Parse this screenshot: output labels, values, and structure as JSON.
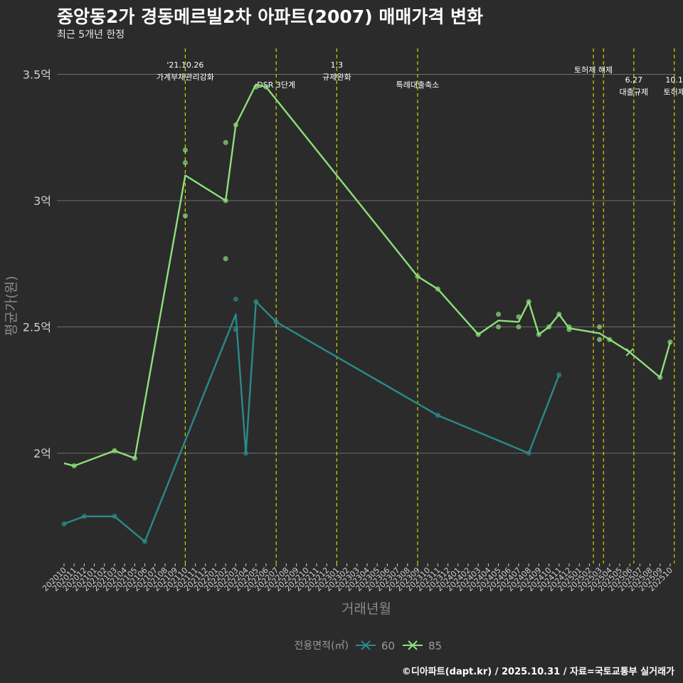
{
  "chart_data": {
    "type": "line",
    "title": "중앙동2가 경동메르빌2차 아파트(2007) 매매가격 변화",
    "subtitle": "최근 5개년 한정",
    "xlabel": "거래년월",
    "ylabel": "평균가(원)",
    "caption": "©디아파트(dapt.kr) / 2025.10.31 / 자료=국토교통부 실거래가",
    "legend_title": "전용면적(㎡)",
    "legend_position": "bottom",
    "ylim": [
      1.57,
      3.6
    ],
    "y_ticks": [
      {
        "value": 2.0,
        "label": "2억"
      },
      {
        "value": 2.5,
        "label": "2.5억"
      },
      {
        "value": 3.0,
        "label": "3억"
      },
      {
        "value": 3.5,
        "label": "3.5억"
      }
    ],
    "x_months": [
      "202010",
      "202011",
      "202012",
      "202101",
      "202102",
      "202103",
      "202104",
      "202105",
      "202106",
      "202107",
      "202108",
      "202109",
      "202110",
      "202111",
      "202112",
      "202201",
      "202202",
      "202203",
      "202204",
      "202205",
      "202206",
      "202207",
      "202208",
      "202209",
      "202210",
      "202211",
      "202212",
      "202301",
      "202302",
      "202303",
      "202304",
      "202305",
      "202306",
      "202307",
      "202308",
      "202309",
      "202310",
      "202311",
      "202312",
      "202401",
      "202402",
      "202403",
      "202404",
      "202405",
      "202406",
      "202407",
      "202408",
      "202409",
      "202410",
      "202411",
      "202412",
      "202501",
      "202502",
      "202503",
      "202504",
      "202505",
      "202506",
      "202507",
      "202508",
      "202509",
      "202510"
    ],
    "x_tick_labels": [
      "202010",
      "202011",
      "202012",
      "202101",
      "202102",
      "202103",
      "202104",
      "202105",
      "202106",
      "202107",
      "202108",
      "202109",
      "202110",
      "202111",
      "202112",
      "202201",
      "202202",
      "202203",
      "202204",
      "202205",
      "202206",
      "202207",
      "202208",
      "202209",
      "202210",
      "202211",
      "202212",
      "202301",
      "202302",
      "202303",
      "202304",
      "202305",
      "202306",
      "202307",
      "202308",
      "202309",
      "202310",
      "202311",
      "202312",
      "202401",
      "202402",
      "202403",
      "202404",
      "202405",
      "202406",
      "202407",
      "202408",
      "202409",
      "202410",
      "202411",
      "202412",
      "202501",
      "202502",
      "202503",
      "202504",
      "202505",
      "202506",
      "202507",
      "202508",
      "202509",
      "202510"
    ],
    "events": [
      {
        "month": 12,
        "label": "'21.10.26\n가계부채관리강화",
        "row": 0
      },
      {
        "month": 21,
        "label": "DSR 3단계",
        "row": 2
      },
      {
        "month": 27,
        "label": "1.3\n규제완화",
        "row": 0
      },
      {
        "month": 35,
        "label": "특례대출축소",
        "row": 2
      },
      {
        "month": 52.4,
        "label": "토허제 해제",
        "row": 0.5
      },
      {
        "month": 53.4,
        "label": "",
        "row": 0
      },
      {
        "month": 56.4,
        "label": "6.27\n대출규제",
        "row": 1.5
      },
      {
        "month": 60.4,
        "label": "10.1\n토허제",
        "row": 1.5
      }
    ],
    "series": [
      {
        "name": "60",
        "color": "#2a8a8a",
        "line": [
          [
            0,
            1.72
          ],
          [
            2,
            1.75
          ],
          [
            5,
            1.75
          ],
          [
            8,
            1.65
          ],
          [
            17,
            2.55
          ],
          [
            18,
            2.0
          ],
          [
            19,
            2.6
          ],
          [
            21,
            2.52
          ],
          [
            37,
            2.15
          ],
          [
            46,
            2.0
          ],
          [
            49,
            2.31
          ]
        ],
        "points": [
          [
            0,
            1.72
          ],
          [
            2,
            1.75
          ],
          [
            5,
            1.75
          ],
          [
            8,
            1.65
          ],
          [
            17,
            2.61
          ],
          [
            17,
            2.49
          ],
          [
            18,
            2.0
          ],
          [
            19,
            2.6
          ],
          [
            21,
            2.52
          ],
          [
            37,
            2.15
          ],
          [
            46,
            2.0
          ],
          [
            49,
            2.31
          ]
        ]
      },
      {
        "name": "85",
        "color": "#8be07a",
        "line": [
          [
            0,
            1.96
          ],
          [
            1,
            1.95
          ],
          [
            5,
            2.01
          ],
          [
            7,
            1.98
          ],
          [
            12,
            3.1
          ],
          [
            16,
            3.0
          ],
          [
            17,
            3.3
          ],
          [
            19,
            3.46
          ],
          [
            20,
            3.45
          ],
          [
            35,
            2.7
          ],
          [
            37,
            2.65
          ],
          [
            41,
            2.47
          ],
          [
            43,
            2.525
          ],
          [
            45,
            2.52
          ],
          [
            46,
            2.6
          ],
          [
            47,
            2.47
          ],
          [
            48,
            2.5
          ],
          [
            49,
            2.55
          ],
          [
            50,
            2.495
          ],
          [
            53,
            2.475
          ],
          [
            54,
            2.45
          ],
          [
            56,
            2.4
          ],
          [
            59,
            2.3
          ],
          [
            60,
            2.44
          ]
        ],
        "points": [
          [
            1,
            1.95
          ],
          [
            5,
            2.01
          ],
          [
            7,
            1.98
          ],
          [
            12,
            3.2
          ],
          [
            12,
            3.15
          ],
          [
            12,
            2.94
          ],
          [
            16,
            3.23
          ],
          [
            16,
            3.0
          ],
          [
            16,
            2.77
          ],
          [
            17,
            3.3
          ],
          [
            19,
            3.45
          ],
          [
            20,
            3.45
          ],
          [
            35,
            2.7
          ],
          [
            37,
            2.65
          ],
          [
            41,
            2.47
          ],
          [
            43,
            2.55
          ],
          [
            43,
            2.5
          ],
          [
            45,
            2.54
          ],
          [
            45,
            2.5
          ],
          [
            46,
            2.6
          ],
          [
            47,
            2.47
          ],
          [
            48,
            2.5
          ],
          [
            49,
            2.55
          ],
          [
            50,
            2.5
          ],
          [
            50,
            2.49
          ],
          [
            53,
            2.5
          ],
          [
            53,
            2.45
          ],
          [
            54,
            2.45
          ],
          [
            59,
            2.3
          ],
          [
            60,
            2.44
          ]
        ],
        "crosses": [
          [
            56,
            2.4
          ]
        ]
      }
    ]
  }
}
